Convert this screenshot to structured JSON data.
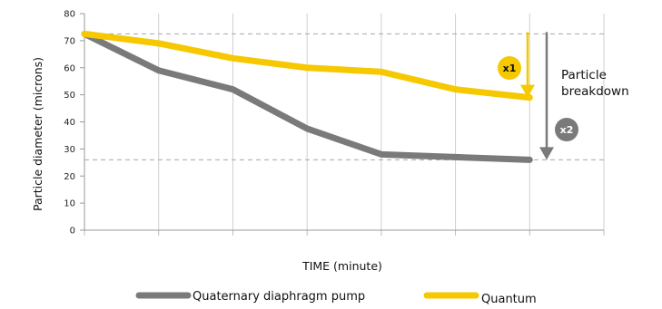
{
  "chart_data": {
    "type": "line",
    "xlabel": "TIME (minute)",
    "ylabel": "Particle diameter (microns)",
    "ylim": [
      0,
      80
    ],
    "y_ticks": [
      0,
      10,
      20,
      30,
      40,
      50,
      60,
      70,
      80
    ],
    "x_tick_count": 8,
    "grid": true,
    "legend_position": "bottom",
    "x": [
      0,
      1,
      2,
      3,
      4,
      5,
      6
    ],
    "series": [
      {
        "name": "Quaternary diaphragm pump",
        "color": "#7a7a7a",
        "values": [
          72.5,
          59,
          52,
          37.5,
          28,
          27,
          26
        ]
      },
      {
        "name": "Quantum",
        "color": "#f5c800",
        "values": [
          72.5,
          69,
          63.5,
          60,
          58.5,
          52,
          49
        ]
      }
    ],
    "reference_lines": [
      72.5,
      26
    ],
    "annotations": {
      "arrow_x1": {
        "label": "x1",
        "color": "#f5c800",
        "from": 72.5,
        "to": 49
      },
      "arrow_x2": {
        "label": "x2",
        "color": "#7a7a7a",
        "from": 72.5,
        "to": 26
      },
      "text_line1": "Particle",
      "text_line2": "breakdown"
    }
  }
}
